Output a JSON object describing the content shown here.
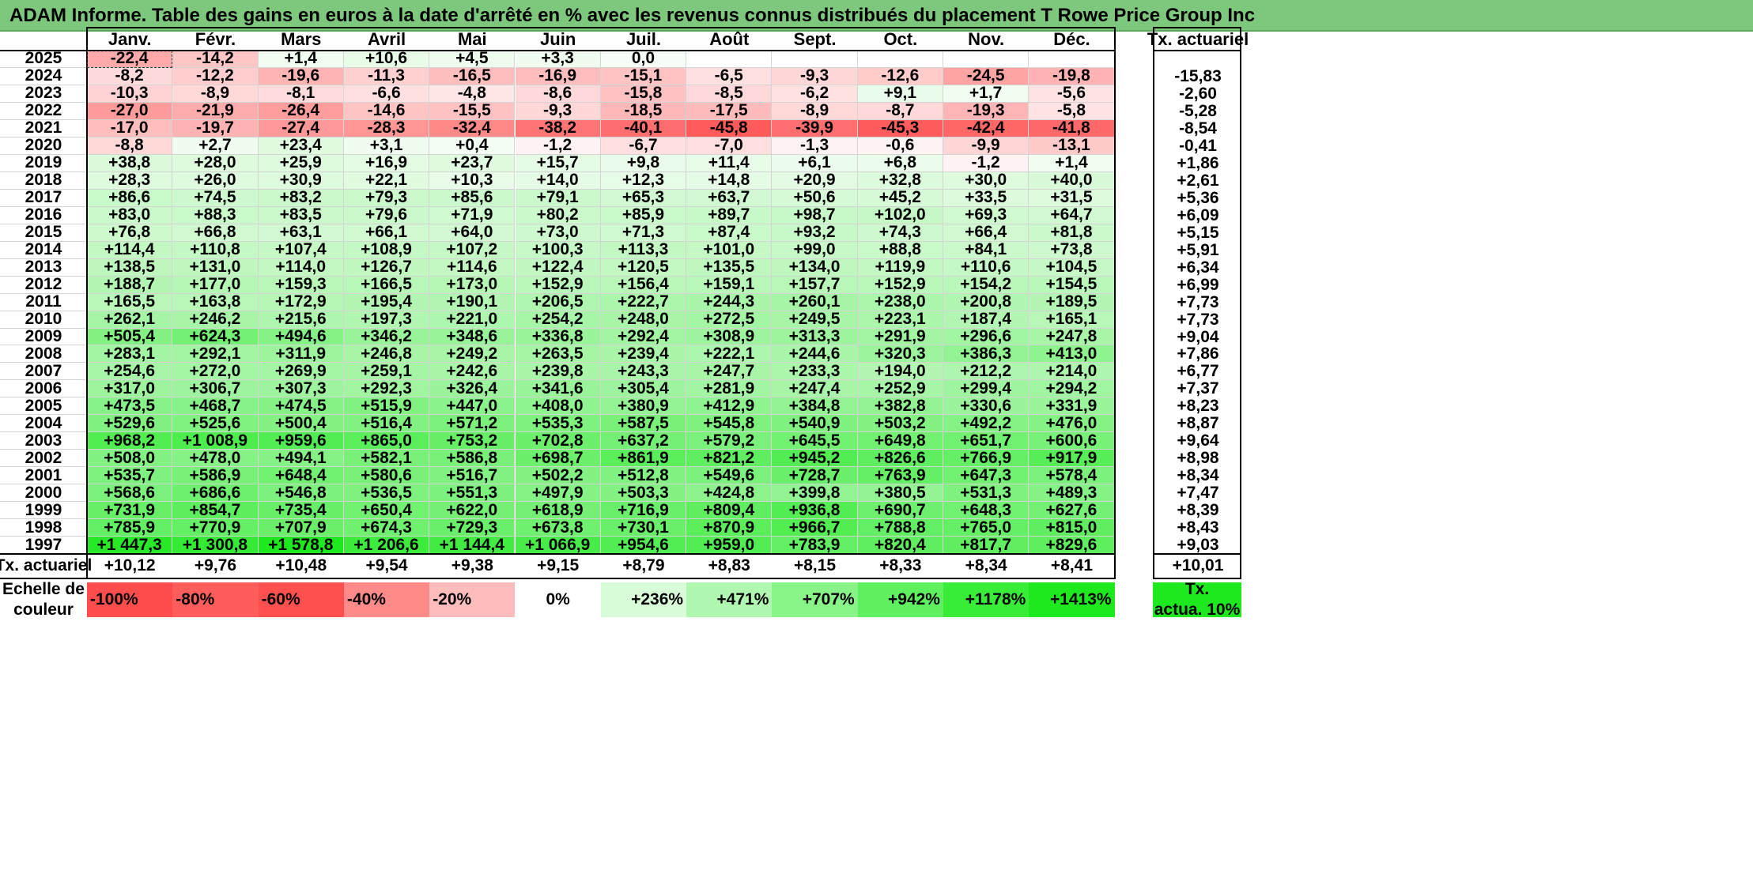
{
  "title": "ADAM Informe. Table des gains en euros à la date d'arrêté en % avec les revenus connus distribués du placement T Rowe Price Group Inc",
  "months": [
    "Janv.",
    "Févr.",
    "Mars",
    "Avril",
    "Mai",
    "Juin",
    "Juil.",
    "Août",
    "Sept.",
    "Oct.",
    "Nov.",
    "Déc."
  ],
  "rate_header": "Tx. actuariel",
  "rows": [
    {
      "year": "2025",
      "values": [
        "-22,4",
        "-14,2",
        "+1,4",
        "+10,6",
        "+4,5",
        "+3,3",
        "0,0",
        "",
        "",
        "",
        "",
        ""
      ],
      "rate": ""
    },
    {
      "year": "2024",
      "values": [
        "-8,2",
        "-12,2",
        "-19,6",
        "-11,3",
        "-16,5",
        "-16,9",
        "-15,1",
        "-6,5",
        "-9,3",
        "-12,6",
        "-24,5",
        "-19,8"
      ],
      "rate": "-15,83"
    },
    {
      "year": "2023",
      "values": [
        "-10,3",
        "-8,9",
        "-8,1",
        "-6,6",
        "-4,8",
        "-8,6",
        "-15,8",
        "-8,5",
        "-6,2",
        "+9,1",
        "+1,7",
        "-5,6"
      ],
      "rate": "-2,60"
    },
    {
      "year": "2022",
      "values": [
        "-27,0",
        "-21,9",
        "-26,4",
        "-14,6",
        "-15,5",
        "-9,3",
        "-18,5",
        "-17,5",
        "-8,9",
        "-8,7",
        "-19,3",
        "-5,8"
      ],
      "rate": "-5,28"
    },
    {
      "year": "2021",
      "values": [
        "-17,0",
        "-19,7",
        "-27,4",
        "-28,3",
        "-32,4",
        "-38,2",
        "-40,1",
        "-45,8",
        "-39,9",
        "-45,3",
        "-42,4",
        "-41,8"
      ],
      "rate": "-8,54"
    },
    {
      "year": "2020",
      "values": [
        "-8,8",
        "+2,7",
        "+23,4",
        "+3,1",
        "+0,4",
        "-1,2",
        "-6,7",
        "-7,0",
        "-1,3",
        "-0,6",
        "-9,9",
        "-13,1"
      ],
      "rate": "-0,41"
    },
    {
      "year": "2019",
      "values": [
        "+38,8",
        "+28,0",
        "+25,9",
        "+16,9",
        "+23,7",
        "+15,7",
        "+9,8",
        "+11,4",
        "+6,1",
        "+6,8",
        "-1,2",
        "+1,4"
      ],
      "rate": "+1,86"
    },
    {
      "year": "2018",
      "values": [
        "+28,3",
        "+26,0",
        "+30,9",
        "+22,1",
        "+10,3",
        "+14,0",
        "+12,3",
        "+14,8",
        "+20,9",
        "+32,8",
        "+30,0",
        "+40,0"
      ],
      "rate": "+2,61"
    },
    {
      "year": "2017",
      "values": [
        "+86,6",
        "+74,5",
        "+83,2",
        "+79,3",
        "+85,6",
        "+79,1",
        "+65,3",
        "+63,7",
        "+50,6",
        "+45,2",
        "+33,5",
        "+31,5"
      ],
      "rate": "+5,36"
    },
    {
      "year": "2016",
      "values": [
        "+83,0",
        "+88,3",
        "+83,5",
        "+79,6",
        "+71,9",
        "+80,2",
        "+85,9",
        "+89,7",
        "+98,7",
        "+102,0",
        "+69,3",
        "+64,7"
      ],
      "rate": "+6,09"
    },
    {
      "year": "2015",
      "values": [
        "+76,8",
        "+66,8",
        "+63,1",
        "+66,1",
        "+64,0",
        "+73,0",
        "+71,3",
        "+87,4",
        "+93,2",
        "+74,3",
        "+66,4",
        "+81,8"
      ],
      "rate": "+5,15"
    },
    {
      "year": "2014",
      "values": [
        "+114,4",
        "+110,8",
        "+107,4",
        "+108,9",
        "+107,2",
        "+100,3",
        "+113,3",
        "+101,0",
        "+99,0",
        "+88,8",
        "+84,1",
        "+73,8"
      ],
      "rate": "+5,91"
    },
    {
      "year": "2013",
      "values": [
        "+138,5",
        "+131,0",
        "+114,0",
        "+126,7",
        "+114,6",
        "+122,4",
        "+120,5",
        "+135,5",
        "+134,0",
        "+119,9",
        "+110,6",
        "+104,5"
      ],
      "rate": "+6,34"
    },
    {
      "year": "2012",
      "values": [
        "+188,7",
        "+177,0",
        "+159,3",
        "+166,5",
        "+173,0",
        "+152,9",
        "+156,4",
        "+159,1",
        "+157,7",
        "+152,9",
        "+154,2",
        "+154,5"
      ],
      "rate": "+6,99"
    },
    {
      "year": "2011",
      "values": [
        "+165,5",
        "+163,8",
        "+172,9",
        "+195,4",
        "+190,1",
        "+206,5",
        "+222,7",
        "+244,3",
        "+260,1",
        "+238,0",
        "+200,8",
        "+189,5"
      ],
      "rate": "+7,73"
    },
    {
      "year": "2010",
      "values": [
        "+262,1",
        "+246,2",
        "+215,6",
        "+197,3",
        "+221,0",
        "+254,2",
        "+248,0",
        "+272,5",
        "+249,5",
        "+223,1",
        "+187,4",
        "+165,1"
      ],
      "rate": "+7,73"
    },
    {
      "year": "2009",
      "values": [
        "+505,4",
        "+624,3",
        "+494,6",
        "+346,2",
        "+348,6",
        "+336,8",
        "+292,4",
        "+308,9",
        "+313,3",
        "+291,9",
        "+296,6",
        "+247,8"
      ],
      "rate": "+9,04"
    },
    {
      "year": "2008",
      "values": [
        "+283,1",
        "+292,1",
        "+311,9",
        "+246,8",
        "+249,2",
        "+263,5",
        "+239,4",
        "+222,1",
        "+244,6",
        "+320,3",
        "+386,3",
        "+413,0"
      ],
      "rate": "+7,86"
    },
    {
      "year": "2007",
      "values": [
        "+254,6",
        "+272,0",
        "+269,9",
        "+259,1",
        "+242,6",
        "+239,8",
        "+243,3",
        "+247,7",
        "+233,3",
        "+194,0",
        "+212,2",
        "+214,0"
      ],
      "rate": "+6,77"
    },
    {
      "year": "2006",
      "values": [
        "+317,0",
        "+306,7",
        "+307,3",
        "+292,3",
        "+326,4",
        "+341,6",
        "+305,4",
        "+281,9",
        "+247,4",
        "+252,9",
        "+299,4",
        "+294,2"
      ],
      "rate": "+7,37"
    },
    {
      "year": "2005",
      "values": [
        "+473,5",
        "+468,7",
        "+474,5",
        "+515,9",
        "+447,0",
        "+408,0",
        "+380,9",
        "+412,9",
        "+384,8",
        "+382,8",
        "+330,6",
        "+331,9"
      ],
      "rate": "+8,23"
    },
    {
      "year": "2004",
      "values": [
        "+529,6",
        "+525,6",
        "+500,4",
        "+516,4",
        "+571,2",
        "+535,3",
        "+587,5",
        "+545,8",
        "+540,9",
        "+503,2",
        "+492,2",
        "+476,0"
      ],
      "rate": "+8,87"
    },
    {
      "year": "2003",
      "values": [
        "+968,2",
        "+1 008,9",
        "+959,6",
        "+865,0",
        "+753,2",
        "+702,8",
        "+637,2",
        "+579,2",
        "+645,5",
        "+649,8",
        "+651,7",
        "+600,6"
      ],
      "rate": "+9,64"
    },
    {
      "year": "2002",
      "values": [
        "+508,0",
        "+478,0",
        "+494,1",
        "+582,1",
        "+586,8",
        "+698,7",
        "+861,9",
        "+821,2",
        "+945,2",
        "+826,6",
        "+766,9",
        "+917,9"
      ],
      "rate": "+8,98"
    },
    {
      "year": "2001",
      "values": [
        "+535,7",
        "+586,9",
        "+648,4",
        "+580,6",
        "+516,7",
        "+502,2",
        "+512,8",
        "+549,6",
        "+728,7",
        "+763,9",
        "+647,3",
        "+578,4"
      ],
      "rate": "+8,34"
    },
    {
      "year": "2000",
      "values": [
        "+568,6",
        "+686,6",
        "+546,8",
        "+536,5",
        "+551,3",
        "+497,9",
        "+503,3",
        "+424,8",
        "+399,8",
        "+380,5",
        "+531,3",
        "+489,3"
      ],
      "rate": "+7,47"
    },
    {
      "year": "1999",
      "values": [
        "+731,9",
        "+854,7",
        "+735,4",
        "+650,4",
        "+622,0",
        "+618,9",
        "+716,9",
        "+809,4",
        "+936,8",
        "+690,7",
        "+648,3",
        "+627,6"
      ],
      "rate": "+8,39"
    },
    {
      "year": "1998",
      "values": [
        "+785,9",
        "+770,9",
        "+707,9",
        "+674,3",
        "+729,3",
        "+673,8",
        "+730,1",
        "+870,9",
        "+966,7",
        "+788,8",
        "+765,0",
        "+815,0"
      ],
      "rate": "+8,43"
    },
    {
      "year": "1997",
      "values": [
        "+1 447,3",
        "+1 300,8",
        "+1 578,8",
        "+1 206,6",
        "+1 144,4",
        "+1 066,9",
        "+954,6",
        "+959,0",
        "+783,9",
        "+820,4",
        "+817,7",
        "+829,6"
      ],
      "rate": "+9,03"
    }
  ],
  "footer": {
    "label": "Tx. actuariel",
    "values": [
      "+10,12",
      "+9,76",
      "+10,48",
      "+9,54",
      "+9,38",
      "+9,15",
      "+8,79",
      "+8,83",
      "+8,15",
      "+8,33",
      "+8,34",
      "+8,41"
    ],
    "rate": "+10,01"
  },
  "scale": {
    "label_line1": "Echelle de",
    "label_line2": "couleur",
    "items": [
      {
        "text": "-100%",
        "color": "#ff4d4d",
        "align": "left"
      },
      {
        "text": "-80%",
        "color": "#ff5c5c",
        "align": "left"
      },
      {
        "text": "-60%",
        "color": "#ff5050",
        "align": "left"
      },
      {
        "text": "-40%",
        "color": "#ff8a8a",
        "align": "left"
      },
      {
        "text": "-20%",
        "color": "#ffbcbc",
        "align": "left"
      },
      {
        "text": "0%",
        "color": "#ffffff",
        "align": "center"
      },
      {
        "text": "+236%",
        "color": "#d8fcd8",
        "align": "right"
      },
      {
        "text": "+471%",
        "color": "#b0f8b0",
        "align": "right"
      },
      {
        "text": "+707%",
        "color": "#88f488",
        "align": "right"
      },
      {
        "text": "+942%",
        "color": "#5ef05e",
        "align": "right"
      },
      {
        "text": "+1178%",
        "color": "#38ec38",
        "align": "right"
      },
      {
        "text": "+1413%",
        "color": "#1ee81e",
        "align": "right"
      }
    ],
    "rate_line1": "Tx.",
    "rate_line2": "actua. 10%",
    "rate_color": "#1ee81e"
  },
  "colors": {
    "title_bg": "#7ec87e",
    "neg_max": "#ff4d4d",
    "pos_max": "#1ee81e"
  }
}
